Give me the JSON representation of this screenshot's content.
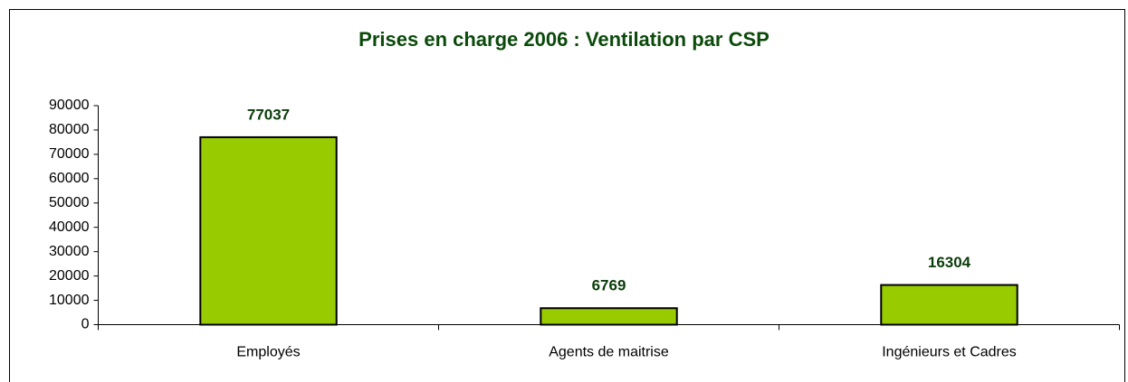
{
  "chart_data": {
    "type": "bar",
    "title": "Prises en charge 2006 : Ventilation par CSP",
    "categories": [
      "Employés",
      "Agents de maitrise",
      "Ingénieurs et Cadres"
    ],
    "values": [
      77037,
      6769,
      16304
    ],
    "color": "#99cc00",
    "ylim": [
      0,
      90000
    ],
    "yticks": [
      0,
      10000,
      20000,
      30000,
      40000,
      50000,
      60000,
      70000,
      80000,
      90000
    ],
    "grid": false
  }
}
